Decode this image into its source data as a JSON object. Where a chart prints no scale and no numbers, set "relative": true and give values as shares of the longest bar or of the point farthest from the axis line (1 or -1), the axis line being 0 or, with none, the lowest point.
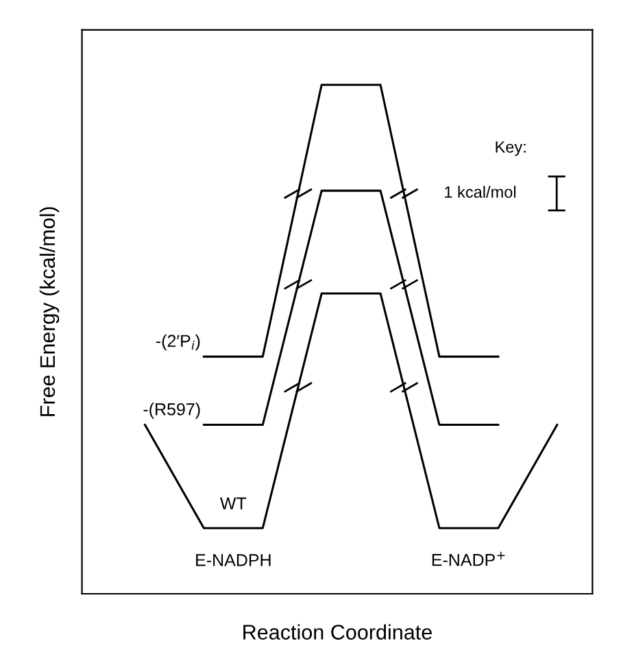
{
  "chart_data": {
    "type": "line",
    "relative": true,
    "xlabel": "Reaction Coordinate",
    "ylabel": "Free Energy (kcal/mol)",
    "categories": [
      null,
      null,
      null,
      null,
      null,
      null,
      null,
      null
    ],
    "series": [
      {
        "name": "WT",
        "color": "#000000",
        "values": [
          0.332,
          0.129,
          0.129,
          0.59,
          0.59,
          0.129,
          0.129,
          0.332
        ]
      },
      {
        "name": "-(R597)",
        "color": "#000000",
        "values": [
          null,
          0.332,
          0.332,
          0.792,
          0.792,
          0.332,
          0.332,
          null
        ]
      },
      {
        "name": "-(2′P$_{i}$)",
        "color": "#000000",
        "values": [
          null,
          0.466,
          0.466,
          1,
          1,
          0.466,
          0.466,
          null
        ]
      }
    ],
    "annotations": [
      "E-NADPH",
      "E-NADP$^{+}$",
      "Key:",
      "1 kcal/mol"
    ],
    "marker": "none",
    "line_style": "solid"
  }
}
